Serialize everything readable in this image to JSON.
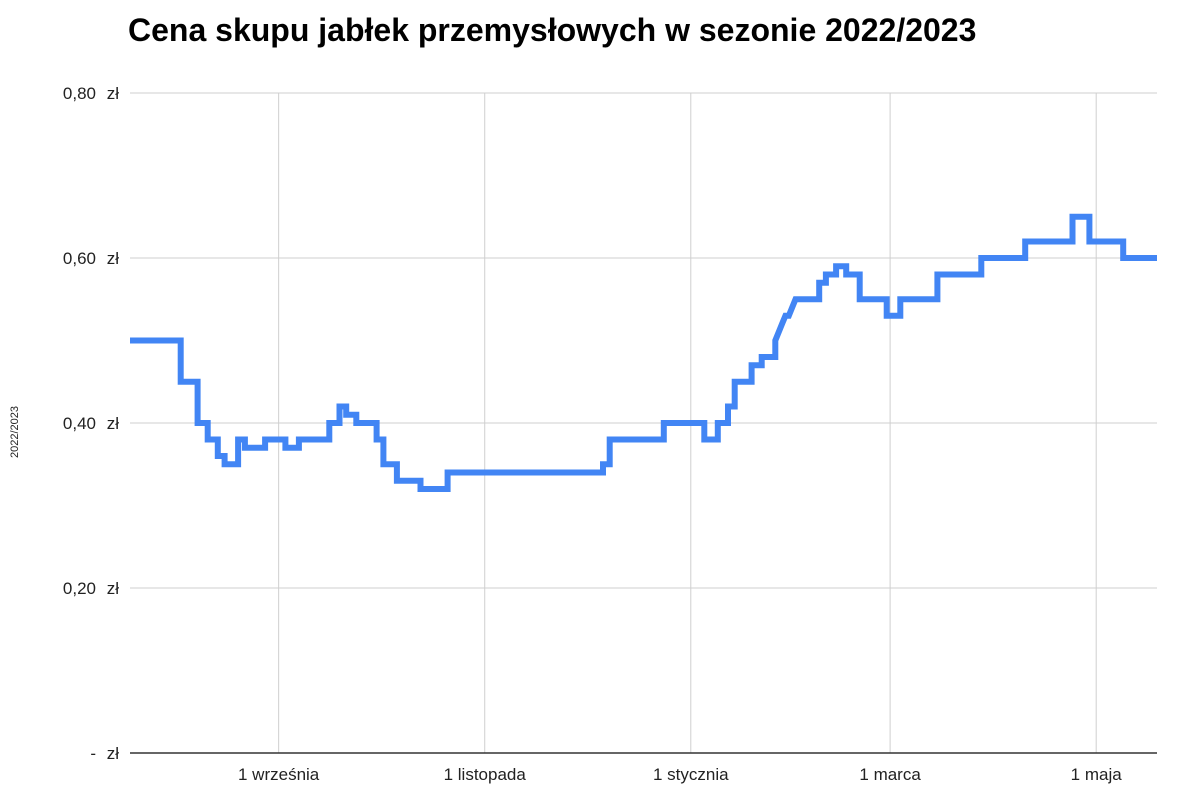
{
  "chart_data": {
    "type": "line",
    "title": "Cena skupu jabłek przemysłowych w sezonie 2022/2023",
    "xlabel": "",
    "ylabel": "2022/2023",
    "x_ticks": [
      {
        "label": "1 września",
        "date": "2022-09-01"
      },
      {
        "label": "1 listopada",
        "date": "2022-11-01"
      },
      {
        "label": "1 stycznia",
        "date": "2023-01-01"
      },
      {
        "label": "1 marca",
        "date": "2023-03-01"
      },
      {
        "label": "1 maja",
        "date": "2023-05-01"
      }
    ],
    "y_ticks": [
      {
        "value": 0,
        "label": "-",
        "unit": "zł"
      },
      {
        "value": 0.2,
        "label": "0,20",
        "unit": "zł"
      },
      {
        "value": 0.4,
        "label": "0,40",
        "unit": "zł"
      },
      {
        "value": 0.6,
        "label": "0,60",
        "unit": "zł"
      },
      {
        "value": 0.8,
        "label": "0,80",
        "unit": "zł"
      }
    ],
    "xlim": [
      "2022-07-19",
      "2023-05-19"
    ],
    "ylim": [
      0,
      0.8
    ],
    "grid": true,
    "line_color": "#4285f4",
    "series": [
      {
        "points": [
          [
            "2022-07-19",
            0.5
          ],
          [
            "2022-08-03",
            0.5
          ],
          [
            "2022-08-03",
            0.45
          ],
          [
            "2022-08-08",
            0.45
          ],
          [
            "2022-08-08",
            0.4
          ],
          [
            "2022-08-11",
            0.4
          ],
          [
            "2022-08-11",
            0.38
          ],
          [
            "2022-08-14",
            0.38
          ],
          [
            "2022-08-14",
            0.36
          ],
          [
            "2022-08-16",
            0.36
          ],
          [
            "2022-08-16",
            0.35
          ],
          [
            "2022-08-20",
            0.35
          ],
          [
            "2022-08-20",
            0.38
          ],
          [
            "2022-08-22",
            0.38
          ],
          [
            "2022-08-22",
            0.37
          ],
          [
            "2022-08-28",
            0.37
          ],
          [
            "2022-08-28",
            0.38
          ],
          [
            "2022-09-03",
            0.38
          ],
          [
            "2022-09-03",
            0.37
          ],
          [
            "2022-09-07",
            0.37
          ],
          [
            "2022-09-07",
            0.38
          ],
          [
            "2022-09-16",
            0.38
          ],
          [
            "2022-09-16",
            0.4
          ],
          [
            "2022-09-19",
            0.4
          ],
          [
            "2022-09-19",
            0.42
          ],
          [
            "2022-09-21",
            0.42
          ],
          [
            "2022-09-21",
            0.41
          ],
          [
            "2022-09-24",
            0.41
          ],
          [
            "2022-09-24",
            0.4
          ],
          [
            "2022-09-30",
            0.4
          ],
          [
            "2022-09-30",
            0.38
          ],
          [
            "2022-10-02",
            0.38
          ],
          [
            "2022-10-02",
            0.35
          ],
          [
            "2022-10-06",
            0.35
          ],
          [
            "2022-10-06",
            0.33
          ],
          [
            "2022-10-13",
            0.33
          ],
          [
            "2022-10-13",
            0.32
          ],
          [
            "2022-10-21",
            0.32
          ],
          [
            "2022-10-21",
            0.34
          ],
          [
            "2022-12-06",
            0.34
          ],
          [
            "2022-12-06",
            0.35
          ],
          [
            "2022-12-08",
            0.35
          ],
          [
            "2022-12-08",
            0.38
          ],
          [
            "2022-12-24",
            0.38
          ],
          [
            "2022-12-24",
            0.4
          ],
          [
            "2023-01-05",
            0.4
          ],
          [
            "2023-01-05",
            0.38
          ],
          [
            "2023-01-09",
            0.38
          ],
          [
            "2023-01-09",
            0.4
          ],
          [
            "2023-01-12",
            0.4
          ],
          [
            "2023-01-12",
            0.42
          ],
          [
            "2023-01-14",
            0.42
          ],
          [
            "2023-01-14",
            0.45
          ],
          [
            "2023-01-19",
            0.45
          ],
          [
            "2023-01-19",
            0.47
          ],
          [
            "2023-01-22",
            0.47
          ],
          [
            "2023-01-22",
            0.48
          ],
          [
            "2023-01-26",
            0.48
          ],
          [
            "2023-01-26",
            0.5
          ],
          [
            "2023-01-28",
            0.52
          ],
          [
            "2023-01-29",
            0.53
          ],
          [
            "2023-01-30",
            0.53
          ],
          [
            "2023-02-01",
            0.55
          ],
          [
            "2023-02-08",
            0.55
          ],
          [
            "2023-02-08",
            0.57
          ],
          [
            "2023-02-10",
            0.57
          ],
          [
            "2023-02-10",
            0.58
          ],
          [
            "2023-02-13",
            0.58
          ],
          [
            "2023-02-13",
            0.59
          ],
          [
            "2023-02-16",
            0.59
          ],
          [
            "2023-02-16",
            0.58
          ],
          [
            "2023-02-20",
            0.58
          ],
          [
            "2023-02-20",
            0.55
          ],
          [
            "2023-02-28",
            0.55
          ],
          [
            "2023-02-28",
            0.53
          ],
          [
            "2023-03-04",
            0.53
          ],
          [
            "2023-03-04",
            0.55
          ],
          [
            "2023-03-15",
            0.55
          ],
          [
            "2023-03-15",
            0.58
          ],
          [
            "2023-03-28",
            0.58
          ],
          [
            "2023-03-28",
            0.6
          ],
          [
            "2023-04-10",
            0.6
          ],
          [
            "2023-04-10",
            0.62
          ],
          [
            "2023-04-22",
            0.62
          ],
          [
            "2023-04-24",
            0.62
          ],
          [
            "2023-04-24",
            0.65
          ],
          [
            "2023-04-29",
            0.65
          ],
          [
            "2023-04-29",
            0.62
          ],
          [
            "2023-05-09",
            0.62
          ],
          [
            "2023-05-09",
            0.6
          ],
          [
            "2023-05-19",
            0.6
          ]
        ]
      }
    ]
  }
}
